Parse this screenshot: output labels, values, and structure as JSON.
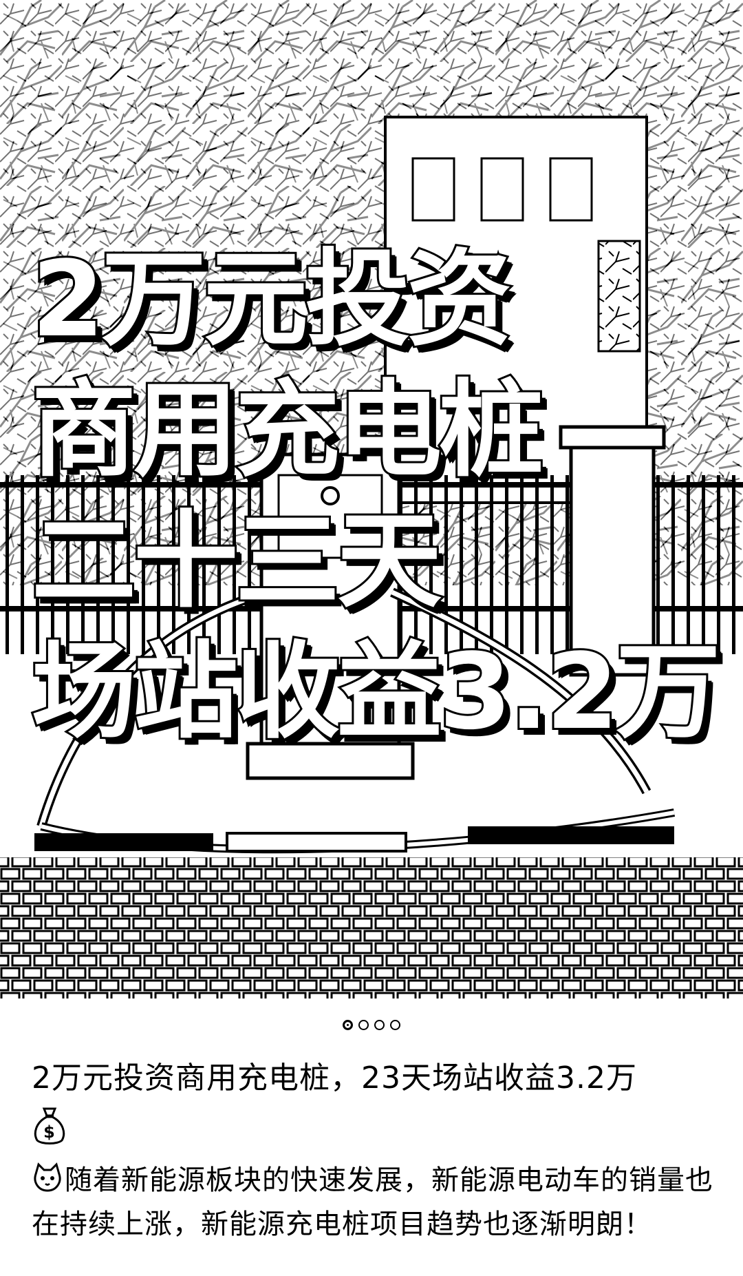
{
  "hero": {
    "headline_lines": [
      "2万元投资",
      "商用充电桩",
      "二十三天",
      "场站收益3.2万"
    ]
  },
  "carousel": {
    "total": 4,
    "active_index": 0
  },
  "post": {
    "title": "2万元投资商用充电桩，23天场站收益3.2万",
    "title_emoji": "money-bag-icon",
    "body_emoji": "cat-face-icon",
    "body": "随着新能源板块的快速发展，新能源电动车的销量也在持续上涨，新能源充电桩项目趋势也逐渐明朗！"
  },
  "colors": {
    "ink": "#000000",
    "paper": "#ffffff"
  }
}
